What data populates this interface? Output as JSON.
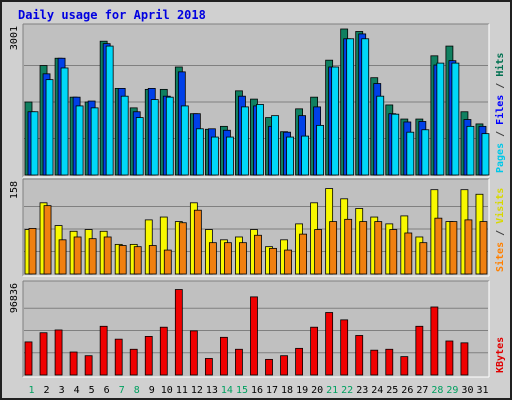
{
  "chart_data": {
    "type": "bar",
    "title": "Daily usage for April 2018",
    "categories": [
      "1",
      "2",
      "3",
      "4",
      "5",
      "6",
      "7",
      "8",
      "9",
      "10",
      "11",
      "12",
      "13",
      "14",
      "15",
      "16",
      "17",
      "18",
      "19",
      "20",
      "21",
      "22",
      "23",
      "24",
      "25",
      "26",
      "27",
      "28",
      "29",
      "30",
      "31"
    ],
    "weekend_days": [
      1,
      7,
      8,
      14,
      15,
      21,
      22,
      28,
      29
    ],
    "panels": [
      {
        "id": "top",
        "ymax": 3001,
        "ymax_label": "3001",
        "axis_label": [
          {
            "text": "Pages",
            "color": "#00c8e8"
          },
          {
            "text": " / ",
            "color": "#404040"
          },
          {
            "text": "Files",
            "color": "#0000ff"
          },
          {
            "text": " / ",
            "color": "#404040"
          },
          {
            "text": "Hits",
            "color": "#007050"
          }
        ],
        "series": [
          {
            "name": "Hits",
            "color": "#108060",
            "values": [
              1500,
              2250,
              2400,
              1600,
              1500,
              2750,
              1780,
              1380,
              1760,
              1760,
              2220,
              1260,
              940,
              1000,
              1730,
              1560,
              1180,
              890,
              1360,
              1600,
              2360,
              3001,
              2950,
              2000,
              1440,
              1150,
              1150,
              2450,
              2650,
              1300,
              1050
            ]
          },
          {
            "name": "Files",
            "color": "#0040e8",
            "values": [
              1300,
              2080,
              2400,
              1600,
              1520,
              2700,
              1780,
              1300,
              1780,
              1620,
              2120,
              1260,
              950,
              920,
              1620,
              1420,
              1000,
              880,
              1220,
              1400,
              2220,
              2800,
              2900,
              1880,
              1260,
              1090,
              1100,
              2260,
              2350,
              1140,
              1000
            ]
          },
          {
            "name": "Pages",
            "color": "#00d8f8",
            "values": [
              1300,
              1960,
              2200,
              1420,
              1380,
              2650,
              1620,
              1180,
              1550,
              1600,
              1420,
              950,
              780,
              780,
              1400,
              1450,
              1220,
              780,
              800,
              1020,
              2220,
              2800,
              2800,
              1620,
              1250,
              880,
              930,
              2300,
              2300,
              1000,
              850
            ]
          }
        ]
      },
      {
        "id": "middle",
        "ymax": 158,
        "ymax_label": "158",
        "axis_label": [
          {
            "text": "Sites",
            "color": "#ff8000"
          },
          {
            "text": " / ",
            "color": "#404040"
          },
          {
            "text": "Visits",
            "color": "#d8d800"
          }
        ],
        "series": [
          {
            "name": "Visits",
            "color": "#f8f800",
            "values": [
              78,
              125,
              85,
              75,
              78,
              75,
              52,
              52,
              95,
              100,
              92,
              125,
              78,
              60,
              65,
              78,
              48,
              60,
              88,
              125,
              150,
              132,
              115,
              100,
              88,
              102,
              65,
              148,
              92,
              148,
              140
            ]
          },
          {
            "name": "Sites",
            "color": "#f08010",
            "values": [
              80,
              120,
              60,
              65,
              62,
              65,
              50,
              48,
              50,
              42,
              90,
              112,
              55,
              55,
              55,
              68,
              45,
              42,
              70,
              78,
              92,
              96,
              92,
              92,
              78,
              72,
              55,
              98,
              92,
              95,
              92
            ]
          }
        ]
      },
      {
        "id": "bottom",
        "ymax": 96836,
        "ymax_label": "96836",
        "axis_label": [
          {
            "text": "KBytes",
            "color": "#e00000"
          }
        ],
        "series": [
          {
            "name": "KBytes",
            "color": "#f00000",
            "values": [
              36000,
              46000,
              49000,
              25000,
              21000,
              53000,
              39000,
              28000,
              42000,
              52000,
              93000,
              48000,
              18000,
              41000,
              28000,
              85000,
              17000,
              21000,
              29000,
              52000,
              68000,
              60000,
              43000,
              27000,
              28000,
              20000,
              53000,
              74000,
              37000,
              35000,
              0
            ]
          }
        ]
      }
    ]
  }
}
